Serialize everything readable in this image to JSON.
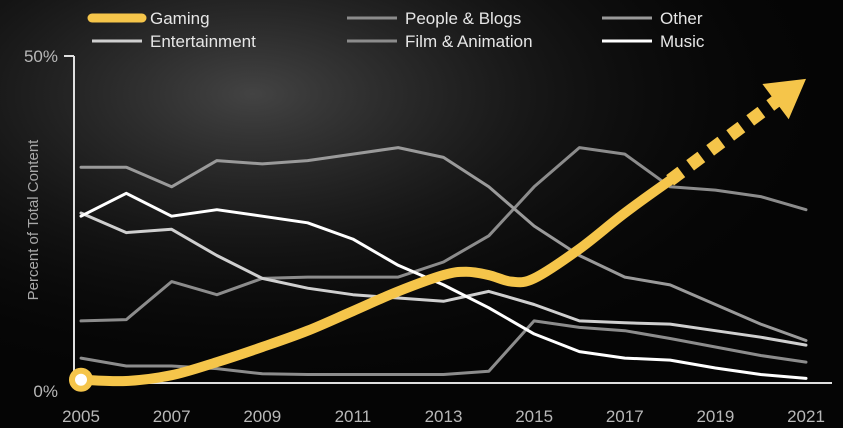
{
  "chart_data": {
    "type": "line",
    "ylabel": "Percent of Total Content",
    "ylim": [
      0,
      50
    ],
    "xlim": [
      2005,
      2021
    ],
    "y_tick_labels": [
      "0%",
      "50%"
    ],
    "x_tick_labels": [
      "2005",
      "2007",
      "2009",
      "2011",
      "2013",
      "2015",
      "2017",
      "2019",
      "2021"
    ],
    "x_ticks": [
      2005,
      2007,
      2009,
      2011,
      2013,
      2015,
      2017,
      2019,
      2021
    ],
    "legend_position": "top",
    "series": [
      {
        "key": "gaming",
        "name": "Gaming",
        "color": "#f5c54a",
        "emphasis": true,
        "x": [
          2005,
          2006,
          2007,
          2008,
          2009,
          2010,
          2011,
          2012,
          2013,
          2013.5,
          2014,
          2014.5,
          2015,
          2016,
          2017,
          2018
        ],
        "values": [
          0.5,
          0.3,
          1.2,
          3.2,
          5.5,
          8.0,
          11.0,
          14.0,
          16.5,
          17.0,
          16.5,
          15.5,
          16.0,
          20.5,
          26.0,
          31.0
        ],
        "projection": {
          "x": [
            2018,
            2021
          ],
          "values": [
            31,
            46.5
          ]
        }
      },
      {
        "key": "entertainment",
        "name": "Entertainment",
        "color": "#cfcfcf",
        "x": [
          2005,
          2006,
          2007,
          2008,
          2009,
          2010,
          2011,
          2012,
          2013,
          2014,
          2015,
          2016,
          2017,
          2018,
          2019,
          2020,
          2021
        ],
        "values": [
          26.0,
          23.0,
          23.5,
          19.5,
          16.0,
          14.5,
          13.5,
          13.0,
          12.5,
          14.0,
          12.0,
          9.5,
          9.2,
          9.0,
          8.0,
          7.0,
          5.8
        ]
      },
      {
        "key": "people_blogs",
        "name": "People & Blogs",
        "color": "#8c8c8c",
        "x": [
          2005,
          2006,
          2007,
          2008,
          2009,
          2010,
          2011,
          2012,
          2013,
          2014,
          2015,
          2016,
          2017,
          2018,
          2019,
          2020,
          2021
        ],
        "values": [
          9.5,
          9.7,
          15.5,
          13.5,
          16.0,
          16.2,
          16.2,
          16.2,
          18.5,
          22.5,
          30.0,
          36.0,
          35.0,
          30.0,
          29.5,
          28.5,
          26.5
        ]
      },
      {
        "key": "film_animation",
        "name": "Film & Animation",
        "color": "#8c8c8c",
        "x": [
          2005,
          2006,
          2007,
          2008,
          2009,
          2010,
          2011,
          2012,
          2013,
          2014,
          2015,
          2016,
          2017,
          2018,
          2019,
          2020,
          2021
        ],
        "values": [
          3.8,
          2.6,
          2.6,
          2.2,
          1.4,
          1.3,
          1.3,
          1.3,
          1.3,
          1.8,
          9.5,
          8.5,
          8.0,
          6.8,
          5.5,
          4.2,
          3.2
        ]
      },
      {
        "key": "other",
        "name": "Other",
        "color": "#9a9a9a",
        "x": [
          2005,
          2006,
          2007,
          2008,
          2009,
          2010,
          2011,
          2012,
          2013,
          2014,
          2015,
          2016,
          2017,
          2018,
          2019,
          2020,
          2021
        ],
        "values": [
          33.0,
          33.0,
          30.0,
          34.0,
          33.5,
          34.0,
          35.0,
          36.0,
          34.5,
          30.0,
          24.0,
          19.5,
          16.2,
          15.0,
          12.0,
          9.0,
          6.5
        ]
      },
      {
        "key": "music",
        "name": "Music",
        "color": "#ffffff",
        "x": [
          2005,
          2006,
          2007,
          2008,
          2009,
          2010,
          2011,
          2012,
          2013,
          2014,
          2015,
          2016,
          2017,
          2018,
          2019,
          2020,
          2021
        ],
        "values": [
          25.5,
          29.0,
          25.5,
          26.5,
          25.5,
          24.5,
          22.0,
          18.0,
          15.0,
          11.5,
          7.5,
          4.8,
          3.8,
          3.5,
          2.3,
          1.3,
          0.7
        ]
      }
    ],
    "legend_rows": [
      [
        "gaming",
        "people_blogs",
        "other"
      ],
      [
        "entertainment",
        "film_animation",
        "music"
      ]
    ]
  }
}
